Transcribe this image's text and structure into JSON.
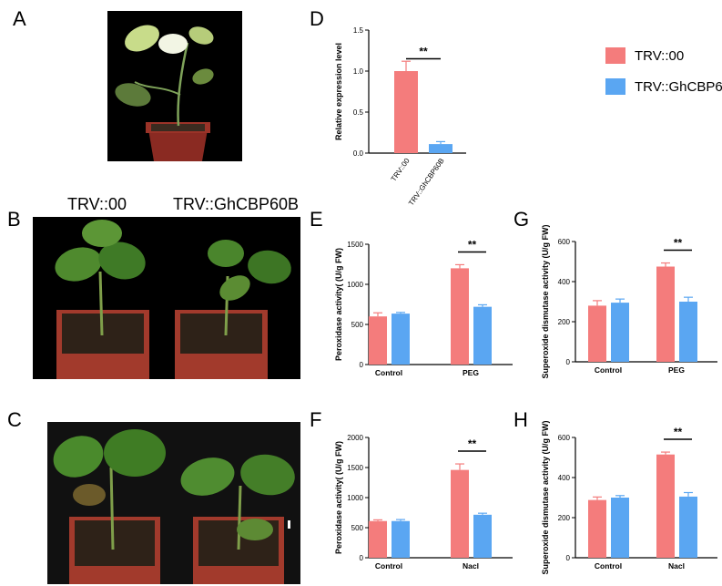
{
  "panels": {
    "A": "A",
    "B": "B",
    "C": "C",
    "D": "D",
    "E": "E",
    "F": "F",
    "G": "G",
    "H": "H"
  },
  "photo_b": {
    "left_caption": "TRV::00",
    "right_caption": "TRV::GhCBP60B"
  },
  "legend": [
    {
      "label": "TRV::00",
      "color": "#f47c7c"
    },
    {
      "label": "TRV::GhCBP60B",
      "color": "#5aa6f2"
    }
  ],
  "colors": {
    "series1": "#f47c7c",
    "series2": "#5aa6f2",
    "photo_bg": "#000000"
  },
  "chart_data": [
    {
      "id": "D",
      "type": "bar",
      "ylabel": "Relative expression level",
      "ylim": [
        0,
        1.5
      ],
      "yticks": [
        0.0,
        0.5,
        1.0,
        1.5
      ],
      "tick_labels": [
        "0.0",
        "0.5",
        "1.0",
        "1.5"
      ],
      "categories": [
        "TRV::00",
        "TRV::GhCBP60B"
      ],
      "values": [
        1.0,
        0.11
      ],
      "errors": [
        0.12,
        0.03
      ],
      "significance": "**"
    },
    {
      "id": "E",
      "type": "bar",
      "ylabel": "Peroxidase activity( (U/g FW)",
      "ylim": [
        0,
        1500
      ],
      "yticks": [
        0,
        500,
        1000,
        1500
      ],
      "tick_labels": [
        "0",
        "500",
        "1000",
        "1500"
      ],
      "categories": [
        "Control",
        "PEG"
      ],
      "series": [
        {
          "name": "TRV::00",
          "values": [
            600,
            1200
          ],
          "errors": [
            45,
            45
          ]
        },
        {
          "name": "TRV::GhCBP60B",
          "values": [
            635,
            720
          ],
          "errors": [
            15,
            25
          ]
        }
      ],
      "significance": "**"
    },
    {
      "id": "G",
      "type": "bar",
      "ylabel": "Superoxide dismutase activity (U/g FW)",
      "ylim": [
        0,
        600
      ],
      "yticks": [
        0,
        200,
        400,
        600
      ],
      "tick_labels": [
        "0",
        "200",
        "400",
        "600"
      ],
      "categories": [
        "Control",
        "PEG"
      ],
      "series": [
        {
          "name": "TRV::00",
          "values": [
            280,
            475
          ],
          "errors": [
            25,
            18
          ]
        },
        {
          "name": "TRV::GhCBP60B",
          "values": [
            295,
            300
          ],
          "errors": [
            18,
            22
          ]
        }
      ],
      "significance": "**"
    },
    {
      "id": "F",
      "type": "bar",
      "ylabel": "Peroxidase activity( (U/g FW)",
      "ylim": [
        0,
        2000
      ],
      "yticks": [
        0,
        500,
        1000,
        1500,
        2000
      ],
      "tick_labels": [
        "0",
        "500",
        "1000",
        "1500",
        "2000"
      ],
      "categories": [
        "Control",
        "Nacl"
      ],
      "series": [
        {
          "name": "TRV::00",
          "values": [
            610,
            1460
          ],
          "errors": [
            20,
            100
          ]
        },
        {
          "name": "TRV::GhCBP60B",
          "values": [
            610,
            715
          ],
          "errors": [
            25,
            25
          ]
        }
      ],
      "significance": "**"
    },
    {
      "id": "H",
      "type": "bar",
      "ylabel": "Superoxide dismutase activity (U/g FW)",
      "ylim": [
        0,
        600
      ],
      "yticks": [
        0,
        200,
        400,
        600
      ],
      "tick_labels": [
        "0",
        "200",
        "400",
        "600"
      ],
      "categories": [
        "Control",
        "Nacl"
      ],
      "series": [
        {
          "name": "TRV::00",
          "values": [
            288,
            515
          ],
          "errors": [
            15,
            12
          ]
        },
        {
          "name": "TRV::GhCBP60B",
          "values": [
            300,
            305
          ],
          "errors": [
            10,
            20
          ]
        }
      ],
      "significance": "**"
    }
  ]
}
